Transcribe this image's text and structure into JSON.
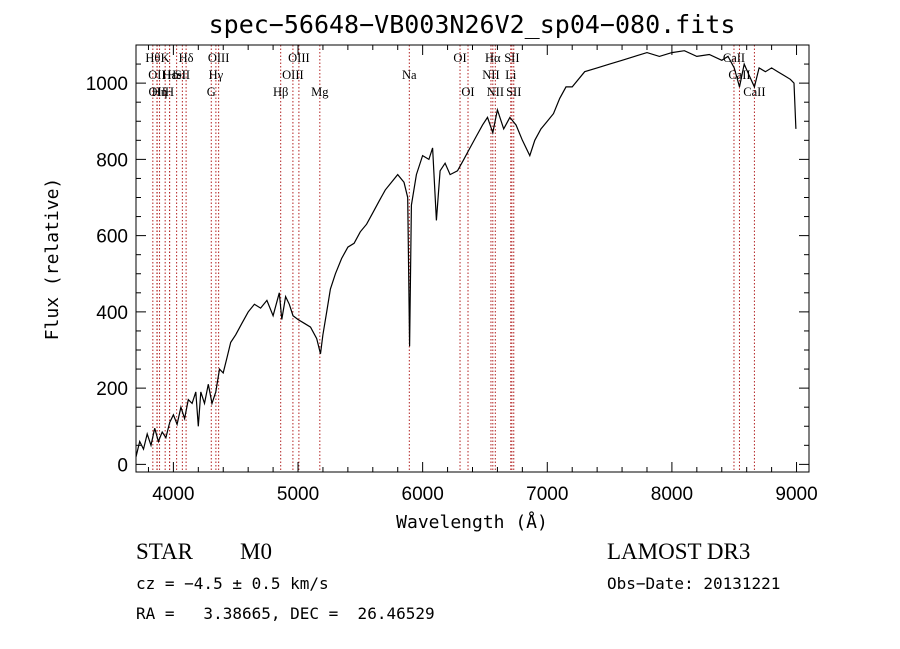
{
  "chart_data": {
    "type": "line",
    "title": "spec−56648−VB003N26V2_sp04−080.fits",
    "xlabel": "Wavelength (Å)",
    "ylabel": "Flux (relative)",
    "xlim": [
      3700,
      9100
    ],
    "ylim": [
      -20,
      1100
    ],
    "x_ticks": [
      4000,
      5000,
      6000,
      7000,
      8000,
      9000
    ],
    "y_ticks": [
      0,
      200,
      400,
      600,
      800,
      1000
    ],
    "series": [
      {
        "name": "flux",
        "points": [
          [
            3700,
            20
          ],
          [
            3730,
            60
          ],
          [
            3760,
            40
          ],
          [
            3790,
            80
          ],
          [
            3820,
            50
          ],
          [
            3850,
            95
          ],
          [
            3880,
            60
          ],
          [
            3910,
            85
          ],
          [
            3940,
            70
          ],
          [
            3970,
            110
          ],
          [
            4000,
            130
          ],
          [
            4030,
            105
          ],
          [
            4060,
            150
          ],
          [
            4090,
            120
          ],
          [
            4120,
            170
          ],
          [
            4150,
            160
          ],
          [
            4180,
            190
          ],
          [
            4200,
            100
          ],
          [
            4220,
            190
          ],
          [
            4250,
            160
          ],
          [
            4280,
            210
          ],
          [
            4310,
            160
          ],
          [
            4340,
            190
          ],
          [
            4370,
            250
          ],
          [
            4400,
            240
          ],
          [
            4430,
            280
          ],
          [
            4460,
            320
          ],
          [
            4500,
            340
          ],
          [
            4550,
            370
          ],
          [
            4600,
            400
          ],
          [
            4650,
            420
          ],
          [
            4700,
            410
          ],
          [
            4750,
            430
          ],
          [
            4800,
            390
          ],
          [
            4850,
            450
          ],
          [
            4870,
            380
          ],
          [
            4900,
            440
          ],
          [
            4930,
            420
          ],
          [
            4960,
            390
          ],
          [
            5000,
            380
          ],
          [
            5050,
            370
          ],
          [
            5100,
            360
          ],
          [
            5150,
            330
          ],
          [
            5180,
            290
          ],
          [
            5200,
            340
          ],
          [
            5230,
            400
          ],
          [
            5260,
            460
          ],
          [
            5300,
            500
          ],
          [
            5350,
            540
          ],
          [
            5400,
            570
          ],
          [
            5450,
            580
          ],
          [
            5500,
            610
          ],
          [
            5550,
            630
          ],
          [
            5600,
            660
          ],
          [
            5650,
            690
          ],
          [
            5700,
            720
          ],
          [
            5750,
            740
          ],
          [
            5800,
            760
          ],
          [
            5850,
            740
          ],
          [
            5880,
            700
          ],
          [
            5895,
            310
          ],
          [
            5910,
            680
          ],
          [
            5950,
            760
          ],
          [
            6000,
            810
          ],
          [
            6050,
            800
          ],
          [
            6080,
            830
          ],
          [
            6110,
            640
          ],
          [
            6140,
            770
          ],
          [
            6180,
            790
          ],
          [
            6220,
            760
          ],
          [
            6280,
            770
          ],
          [
            6330,
            800
          ],
          [
            6380,
            830
          ],
          [
            6430,
            860
          ],
          [
            6480,
            890
          ],
          [
            6520,
            910
          ],
          [
            6563,
            870
          ],
          [
            6600,
            930
          ],
          [
            6650,
            880
          ],
          [
            6700,
            910
          ],
          [
            6750,
            890
          ],
          [
            6800,
            850
          ],
          [
            6860,
            810
          ],
          [
            6900,
            850
          ],
          [
            6950,
            880
          ],
          [
            7000,
            900
          ],
          [
            7050,
            920
          ],
          [
            7100,
            960
          ],
          [
            7150,
            990
          ],
          [
            7200,
            990
          ],
          [
            7300,
            1030
          ],
          [
            7400,
            1040
          ],
          [
            7500,
            1050
          ],
          [
            7600,
            1060
          ],
          [
            7700,
            1070
          ],
          [
            7800,
            1080
          ],
          [
            7900,
            1070
          ],
          [
            8000,
            1080
          ],
          [
            8100,
            1085
          ],
          [
            8200,
            1070
          ],
          [
            8300,
            1075
          ],
          [
            8400,
            1060
          ],
          [
            8450,
            1070
          ],
          [
            8500,
            1040
          ],
          [
            8542,
            990
          ],
          [
            8580,
            1050
          ],
          [
            8620,
            1020
          ],
          [
            8662,
            990
          ],
          [
            8700,
            1040
          ],
          [
            8750,
            1030
          ],
          [
            8800,
            1040
          ],
          [
            8850,
            1030
          ],
          [
            8900,
            1020
          ],
          [
            8950,
            1010
          ],
          [
            8980,
            1000
          ],
          [
            8995,
            880
          ]
        ]
      }
    ],
    "line_markers": [
      {
        "wl": 3835,
        "label": "Hθ",
        "row": 0
      },
      {
        "wl": 3868,
        "label": "OII",
        "row": 1
      },
      {
        "wl": 3870,
        "label": "OII",
        "row": 2
      },
      {
        "wl": 3889,
        "label": "Hη",
        "row": 2
      },
      {
        "wl": 3934,
        "label": "K",
        "row": 0
      },
      {
        "wl": 3969,
        "label": "H",
        "row": 2
      },
      {
        "wl": 3970,
        "label": "Hε",
        "row": 1
      },
      {
        "wl": 4026,
        "label": "HeI",
        "row": 1
      },
      {
        "wl": 4072,
        "label": "SII",
        "row": 1
      },
      {
        "wl": 4102,
        "label": "Hδ",
        "row": 0
      },
      {
        "wl": 4304,
        "label": "G",
        "row": 2
      },
      {
        "wl": 4341,
        "label": "Hγ",
        "row": 1
      },
      {
        "wl": 4363,
        "label": "OIII",
        "row": 0
      },
      {
        "wl": 4861,
        "label": "Hβ",
        "row": 2
      },
      {
        "wl": 4959,
        "label": "OIII",
        "row": 1
      },
      {
        "wl": 5007,
        "label": "OIII",
        "row": 0
      },
      {
        "wl": 5175,
        "label": "Mg",
        "row": 2
      },
      {
        "wl": 5893,
        "label": "Na",
        "row": 1
      },
      {
        "wl": 6300,
        "label": "OI",
        "row": 0
      },
      {
        "wl": 6364,
        "label": "OI",
        "row": 2
      },
      {
        "wl": 6548,
        "label": "NII",
        "row": 1
      },
      {
        "wl": 6563,
        "label": "Hα",
        "row": 0
      },
      {
        "wl": 6583,
        "label": "NII",
        "row": 2
      },
      {
        "wl": 6707,
        "label": "Li",
        "row": 1
      },
      {
        "wl": 6716,
        "label": "SII",
        "row": 0
      },
      {
        "wl": 6731,
        "label": "SII",
        "row": 2
      },
      {
        "wl": 8498,
        "label": "CaII",
        "row": 0
      },
      {
        "wl": 8542,
        "label": "CaII",
        "row": 1
      },
      {
        "wl": 8662,
        "label": "CaII",
        "row": 2
      }
    ]
  },
  "info": {
    "class_label": "STAR",
    "subclass": "M0",
    "survey": "LAMOST DR3",
    "cz": "cz = −4.5 ± 0.5 km/s",
    "obs_date": "Obs−Date: 20131221",
    "coords": "RA =   3.38665, DEC =  26.46529"
  },
  "colors": {
    "marker_line": "#b22222",
    "spectrum": "#000000",
    "background": "#ffffff"
  }
}
